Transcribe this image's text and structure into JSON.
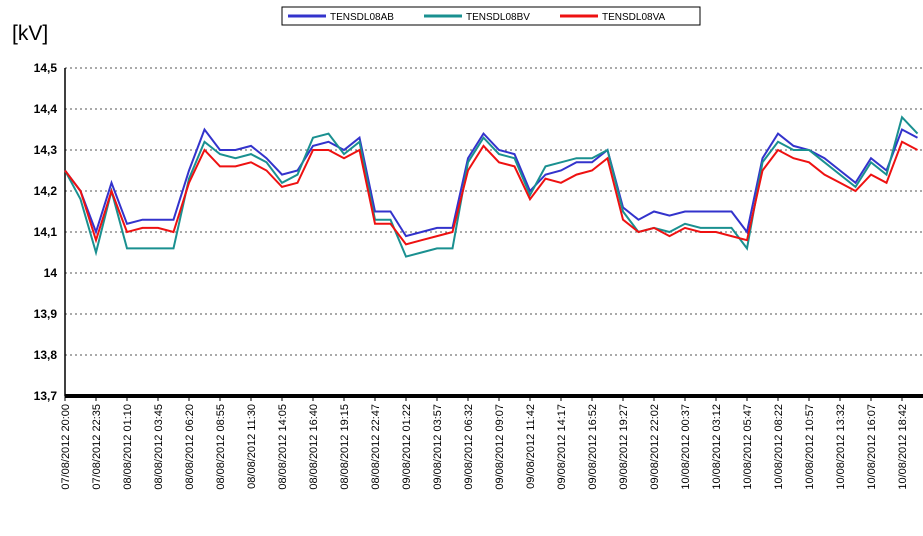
{
  "chart_data": {
    "type": "line",
    "y_unit_label": "[kV]",
    "categories": [
      "07/08/2012 20:00",
      null,
      "07/08/2012 22:35",
      null,
      "08/08/2012 01:10",
      null,
      "08/08/2012 03:45",
      null,
      "08/08/2012 06:20",
      null,
      "08/08/2012 08:55",
      null,
      "08/08/2012 11:30",
      null,
      "08/08/2012 14:05",
      null,
      "08/08/2012 16:40",
      null,
      "08/08/2012 19:15",
      null,
      "08/08/2012 22:47",
      null,
      "09/08/2012 01:22",
      null,
      "09/08/2012 03:57",
      null,
      "09/08/2012 06:32",
      null,
      "09/08/2012 09:07",
      null,
      "09/08/2012 11:42",
      null,
      "09/08/2012 14:17",
      null,
      "09/08/2012 16:52",
      null,
      "09/08/2012 19:27",
      null,
      "09/08/2012 22:02",
      null,
      "10/08/2012 00:37",
      null,
      "10/08/2012 03:12",
      null,
      "10/08/2012 05:47",
      null,
      "10/08/2012 08:22",
      null,
      "10/08/2012 10:57",
      null,
      "10/08/2012 13:32",
      null,
      "10/08/2012 16:07",
      null,
      "10/08/2012 18:42",
      null
    ],
    "series": [
      {
        "name": "TENSDL08AB",
        "color": "#3333cc",
        "values": [
          14.25,
          14.2,
          14.1,
          14.22,
          14.12,
          14.13,
          14.13,
          14.13,
          14.25,
          14.35,
          14.3,
          14.3,
          14.31,
          14.28,
          14.24,
          14.25,
          14.31,
          14.32,
          14.3,
          14.33,
          14.15,
          14.15,
          14.09,
          14.1,
          14.11,
          14.11,
          14.28,
          14.34,
          14.3,
          14.29,
          14.2,
          14.24,
          14.25,
          14.27,
          14.27,
          14.3,
          14.16,
          14.13,
          14.15,
          14.14,
          14.15,
          14.15,
          14.15,
          14.15,
          14.1,
          14.28,
          14.34,
          14.31,
          14.3,
          14.28,
          14.25,
          14.22,
          14.28,
          14.25,
          14.35,
          14.33
        ]
      },
      {
        "name": "TENSDL08BV",
        "color": "#1a9090",
        "values": [
          14.25,
          14.18,
          14.05,
          14.2,
          14.06,
          14.06,
          14.06,
          14.06,
          14.23,
          14.32,
          14.29,
          14.28,
          14.29,
          14.27,
          14.22,
          14.24,
          14.33,
          14.34,
          14.29,
          14.32,
          14.13,
          14.13,
          14.04,
          14.05,
          14.06,
          14.06,
          14.27,
          14.33,
          14.29,
          14.28,
          14.19,
          14.26,
          14.27,
          14.28,
          14.28,
          14.3,
          14.15,
          14.1,
          14.11,
          14.1,
          14.12,
          14.11,
          14.11,
          14.11,
          14.06,
          14.27,
          14.32,
          14.3,
          14.3,
          14.27,
          14.24,
          14.21,
          14.27,
          14.24,
          14.38,
          14.34
        ]
      },
      {
        "name": "TENSDL08VA",
        "color": "#ee1111",
        "values": [
          14.25,
          14.2,
          14.08,
          14.2,
          14.1,
          14.11,
          14.11,
          14.1,
          14.22,
          14.3,
          14.26,
          14.26,
          14.27,
          14.25,
          14.21,
          14.22,
          14.3,
          14.3,
          14.28,
          14.3,
          14.12,
          14.12,
          14.07,
          14.08,
          14.09,
          14.1,
          14.25,
          14.31,
          14.27,
          14.26,
          14.18,
          14.23,
          14.22,
          14.24,
          14.25,
          14.28,
          14.13,
          14.1,
          14.11,
          14.09,
          14.11,
          14.1,
          14.1,
          14.09,
          14.08,
          14.25,
          14.3,
          14.28,
          14.27,
          14.24,
          14.22,
          14.2,
          14.24,
          14.22,
          14.32,
          14.3
        ]
      }
    ],
    "ylim": [
      13.7,
      14.5
    ],
    "yticks": [
      {
        "value": 13.7,
        "label": "13,7"
      },
      {
        "value": 13.8,
        "label": "13,8"
      },
      {
        "value": 13.9,
        "label": "13,9"
      },
      14,
      {
        "value": 14.1,
        "label": "14,1"
      },
      {
        "value": 14.2,
        "label": "14,2"
      },
      {
        "value": 14.3,
        "label": "14,3"
      },
      {
        "value": 14.4,
        "label": "14,4"
      },
      {
        "value": 14.5,
        "label": "14,5"
      }
    ],
    "grid": true,
    "legend": "top"
  }
}
